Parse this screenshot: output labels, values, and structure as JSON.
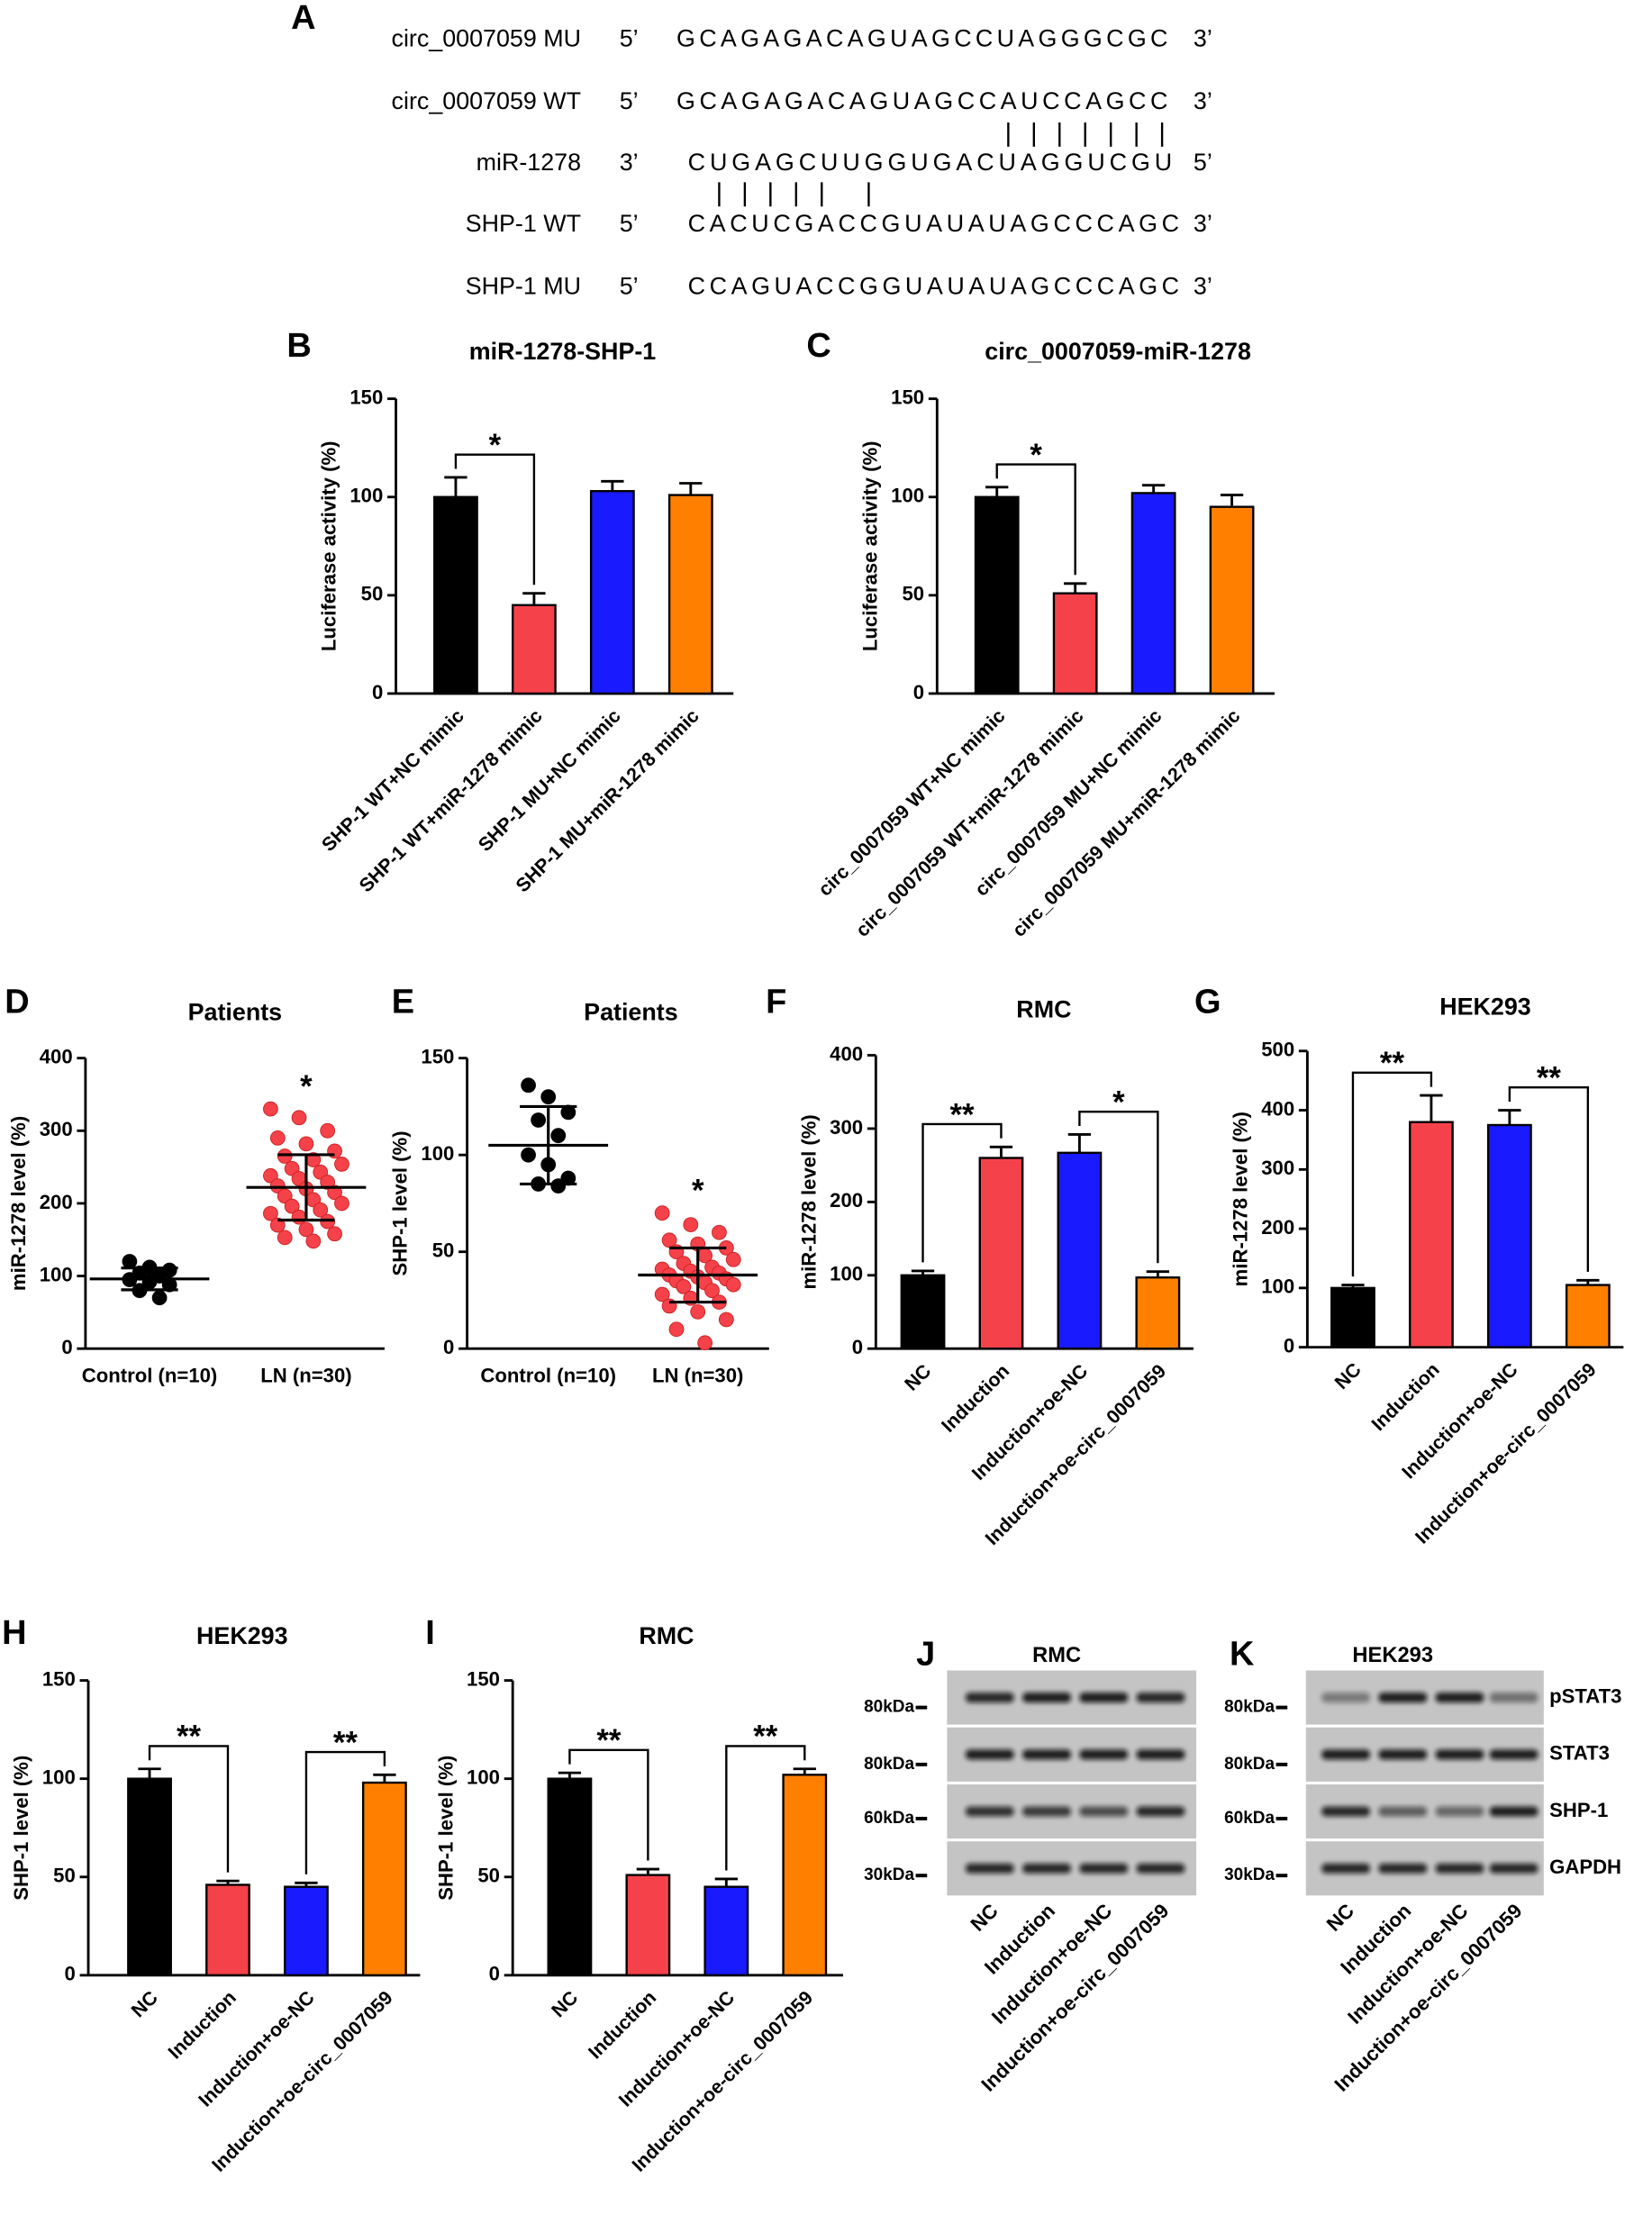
{
  "sequences": {
    "panel": "A",
    "rows": [
      {
        "label": "circ_0007059 MU",
        "left": "5’",
        "seq": "GCAGAGACAGUAGCCUAGGGCGC",
        "right": "3’"
      },
      {
        "label": "circ_0007059 WT",
        "left": "5’",
        "seq": "GCAGAGACAGUAGCCAUCCAGCC",
        "right": "3’"
      },
      {
        "label": "miR-1278",
        "left": "3’",
        "seq": "CUGAGCUUGGUGACUAGGUCGU",
        "right": "5’"
      },
      {
        "label": "SHP-1 WT",
        "left": "5’",
        "seq": "CACUCGACCGUAUAUAGCCCAGC",
        "right": "3’"
      },
      {
        "label": "SHP-1 MU",
        "left": "5’",
        "seq": "CCAGUACCGGUAUAUAGCCCAGC",
        "right": "3’"
      }
    ]
  },
  "chart_data": [
    {
      "panel": "B",
      "type": "bar",
      "title": "miR-1278-SHP-1",
      "ylabel": "Luciferase activity (%)",
      "categories": [
        "SHP-1 WT+NC mimic",
        "SHP-1 WT+miR-1278 mimic",
        "SHP-1 MU+NC mimic",
        "SHP-1 MU+miR-1278 mimic"
      ],
      "values": [
        100,
        45,
        103,
        101
      ],
      "errors": [
        10,
        6,
        5,
        6
      ],
      "colors": [
        "#000000",
        "#f5424a",
        "#1a1aff",
        "#ff8000"
      ],
      "ylim": [
        0,
        150
      ],
      "yticks": [
        0,
        50,
        100,
        150
      ],
      "brackets": [
        {
          "from": 0,
          "to": 1,
          "label": "*"
        }
      ]
    },
    {
      "panel": "C",
      "type": "bar",
      "title": "circ_0007059-miR-1278",
      "ylabel": "Luciferase activity (%)",
      "categories": [
        "circ_0007059 WT+NC mimic",
        "circ_0007059 WT+miR-1278 mimic",
        "circ_0007059 MU+NC mimic",
        "circ_0007059 MU+miR-1278 mimic"
      ],
      "values": [
        100,
        51,
        102,
        95
      ],
      "errors": [
        5,
        5,
        4,
        6
      ],
      "colors": [
        "#000000",
        "#f5424a",
        "#1a1aff",
        "#ff8000"
      ],
      "ylim": [
        0,
        150
      ],
      "yticks": [
        0,
        50,
        100,
        150
      ],
      "brackets": [
        {
          "from": 0,
          "to": 1,
          "label": "*"
        }
      ]
    },
    {
      "panel": "D",
      "type": "dot",
      "title": "Patients",
      "ylabel": "miR-1278 level (%)",
      "categories": [
        "Control (n=10)",
        "LN (n=30)"
      ],
      "colors": [
        "#000000",
        "#f5424a"
      ],
      "points": [
        [
          120,
          112,
          108,
          104,
          100,
          95,
          92,
          88,
          80,
          70
        ],
        [
          330,
          318,
          300,
          290,
          282,
          272,
          265,
          260,
          254,
          248,
          243,
          238,
          234,
          229,
          224,
          220,
          215,
          210,
          205,
          200,
          196,
          191,
          186,
          181,
          175,
          170,
          164,
          158,
          153,
          148
        ]
      ],
      "means": [
        96,
        222
      ],
      "sds": [
        15,
        45
      ],
      "annotation": "*",
      "ylim": [
        0,
        400
      ],
      "yticks": [
        0,
        100,
        200,
        300,
        400
      ]
    },
    {
      "panel": "E",
      "type": "dot",
      "title": "Patients",
      "ylabel": "SHP-1 level (%)",
      "categories": [
        "Control (n=10)",
        "LN (n=30)"
      ],
      "colors": [
        "#000000",
        "#f5424a"
      ],
      "points": [
        [
          136,
          130,
          122,
          118,
          110,
          100,
          95,
          88,
          85,
          84
        ],
        [
          70,
          64,
          60,
          56,
          54,
          52,
          50,
          48,
          46,
          44,
          42,
          41,
          40,
          39,
          38,
          37,
          36,
          35,
          34,
          33,
          32,
          30,
          28,
          26,
          24,
          22,
          19,
          15,
          10,
          3
        ]
      ],
      "means": [
        105,
        38
      ],
      "sds": [
        20,
        14
      ],
      "annotation": "*",
      "ylim": [
        0,
        150
      ],
      "yticks": [
        0,
        50,
        100,
        150
      ]
    },
    {
      "panel": "F",
      "type": "bar",
      "title": "RMC",
      "ylabel": "miR-1278 level (%)",
      "categories": [
        "NC",
        "Induction",
        "Induction+oe-NC",
        "Induction+oe-circ_0007059"
      ],
      "values": [
        100,
        260,
        267,
        97
      ],
      "errors": [
        6,
        15,
        25,
        8
      ],
      "colors": [
        "#000000",
        "#f5424a",
        "#1a1aff",
        "#ff8000"
      ],
      "ylim": [
        0,
        400
      ],
      "yticks": [
        0,
        100,
        200,
        300,
        400
      ],
      "brackets": [
        {
          "from": 0,
          "to": 1,
          "label": "**"
        },
        {
          "from": 2,
          "to": 3,
          "label": "*"
        }
      ]
    },
    {
      "panel": "G",
      "type": "bar",
      "title": "HEK293",
      "ylabel": "miR-1278 level (%)",
      "categories": [
        "NC",
        "Induction",
        "Induction+oe-NC",
        "Induction+oe-circ_0007059"
      ],
      "values": [
        100,
        380,
        375,
        105
      ],
      "errors": [
        5,
        45,
        25,
        8
      ],
      "colors": [
        "#000000",
        "#f5424a",
        "#1a1aff",
        "#ff8000"
      ],
      "ylim": [
        0,
        500
      ],
      "yticks": [
        0,
        100,
        200,
        300,
        400,
        500
      ],
      "brackets": [
        {
          "from": 0,
          "to": 1,
          "label": "**"
        },
        {
          "from": 2,
          "to": 3,
          "label": "**"
        }
      ]
    },
    {
      "panel": "H",
      "type": "bar",
      "title": "HEK293",
      "ylabel": "SHP-1 level (%)",
      "categories": [
        "NC",
        "Induction",
        "Induction+oe-NC",
        "Induction+oe-circ_0007059"
      ],
      "values": [
        100,
        46,
        45,
        98
      ],
      "errors": [
        5,
        2,
        2,
        4
      ],
      "colors": [
        "#000000",
        "#f5424a",
        "#1a1aff",
        "#ff8000"
      ],
      "ylim": [
        0,
        150
      ],
      "yticks": [
        0,
        50,
        100,
        150
      ],
      "brackets": [
        {
          "from": 0,
          "to": 1,
          "label": "**"
        },
        {
          "from": 2,
          "to": 3,
          "label": "**"
        }
      ]
    },
    {
      "panel": "I",
      "type": "bar",
      "title": "RMC",
      "ylabel": "SHP-1 level (%)",
      "categories": [
        "NC",
        "Induction",
        "Induction+oe-NC",
        "Induction+oe-circ_0007059"
      ],
      "values": [
        100,
        51,
        45,
        102
      ],
      "errors": [
        3,
        3,
        4,
        3
      ],
      "colors": [
        "#000000",
        "#f5424a",
        "#1a1aff",
        "#ff8000"
      ],
      "ylim": [
        0,
        150
      ],
      "yticks": [
        0,
        50,
        100,
        150
      ],
      "brackets": [
        {
          "from": 0,
          "to": 1,
          "label": "**"
        },
        {
          "from": 2,
          "to": 3,
          "label": "**"
        }
      ]
    }
  ],
  "blots": [
    {
      "panel": "J",
      "title": "RMC",
      "markers": [
        "80kDa",
        "80kDa",
        "60kDa",
        "30kDa"
      ],
      "lanes": [
        "NC",
        "Induction",
        "Induction+oe-NC",
        "Induction+oe-circ_0007059"
      ]
    },
    {
      "panel": "K",
      "title": "HEK293",
      "markers": [
        "80kDa",
        "80kDa",
        "60kDa",
        "30kDa"
      ],
      "lanes": [
        "NC",
        "Induction",
        "Induction+oe-NC",
        "Induction+oe-circ_0007059"
      ],
      "proteins": [
        "pSTAT3",
        "STAT3",
        "SHP-1",
        "GAPDH"
      ]
    }
  ]
}
